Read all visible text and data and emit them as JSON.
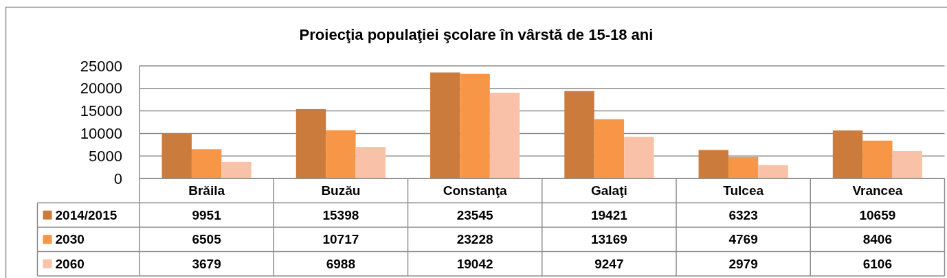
{
  "chart_data": {
    "type": "bar",
    "title": "Proiecţia populaţiei şcolare în vârstă de 15-18 ani",
    "categories": [
      "Brăila",
      "Buzău",
      "Constanţa",
      "Galaţi",
      "Tulcea",
      "Vrancea"
    ],
    "series": [
      {
        "name": "2014/2015",
        "color": "#cb7b3b",
        "values": [
          9951,
          15398,
          23545,
          19421,
          6323,
          10659
        ]
      },
      {
        "name": "2030",
        "color": "#f79646",
        "values": [
          6505,
          10717,
          23228,
          13169,
          4769,
          8406
        ]
      },
      {
        "name": "2060",
        "color": "#f9c2a8",
        "values": [
          3679,
          6988,
          19042,
          9247,
          2979,
          6106
        ]
      }
    ],
    "ylim": [
      0,
      25000
    ],
    "yticks": [
      0,
      5000,
      10000,
      15000,
      20000,
      25000
    ],
    "grid": "y",
    "legend": "bottom left",
    "data_labels": true
  }
}
